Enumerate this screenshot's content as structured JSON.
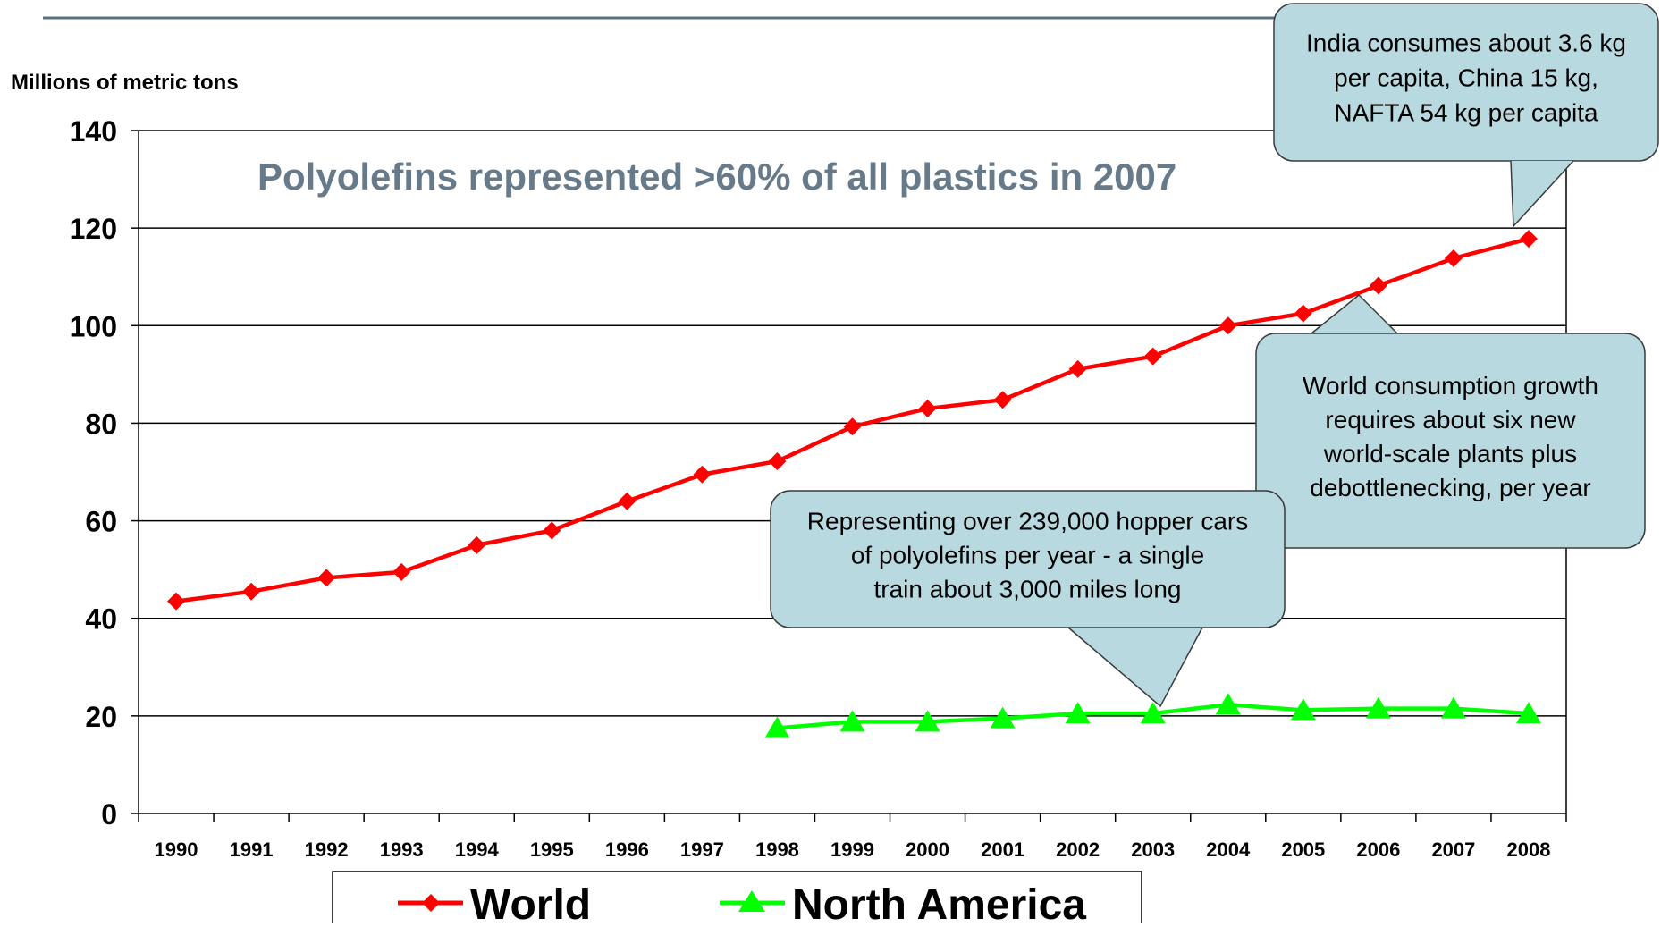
{
  "chart_data": {
    "type": "line",
    "ylabel": "Millions of metric tons",
    "title": "Polyolefins represented >60% of all plastics in 2007",
    "x": [
      "1990",
      "1991",
      "1992",
      "1993",
      "1994",
      "1995",
      "1996",
      "1997",
      "1998",
      "1999",
      "2000",
      "2001",
      "2002",
      "2003",
      "2004",
      "2005",
      "2006",
      "2007",
      "2008"
    ],
    "ylim": [
      0,
      140
    ],
    "yticks": [
      0,
      20,
      40,
      60,
      80,
      100,
      120,
      140
    ],
    "grid": true,
    "legend_position": "bottom",
    "series": [
      {
        "name": "World",
        "color": "#ff0000",
        "marker": "diamond",
        "values": [
          43.5,
          45.5,
          48.3,
          49.5,
          55,
          58,
          64,
          69.5,
          72.2,
          79.3,
          83,
          84.8,
          91.1,
          93.7,
          100,
          102.5,
          108.2,
          113.8,
          117.8
        ]
      },
      {
        "name": "North America",
        "color": "#00ff00",
        "marker": "triangle",
        "values": [
          null,
          null,
          null,
          null,
          null,
          null,
          null,
          null,
          17.5,
          18.8,
          18.8,
          19.5,
          20.5,
          20.5,
          22.3,
          21.2,
          21.5,
          21.5,
          20.5
        ]
      }
    ],
    "annotations": [
      "India consumes about 3.6 kg per capita, China 15 kg, NAFTA 54 kg per capita",
      "World consumption growth requires about six new world-scale plants plus debottlenecking, per year",
      "Representing over 239,000 hopper cars of polyolefins per year - a single train about 3,000 miles long"
    ],
    "colors": {
      "title": "#667a89",
      "callout_fill": "#b8d9df",
      "callout_stroke": "#3a3a3a",
      "axis": "#000000",
      "header_rule": "#5b6f7e"
    }
  }
}
